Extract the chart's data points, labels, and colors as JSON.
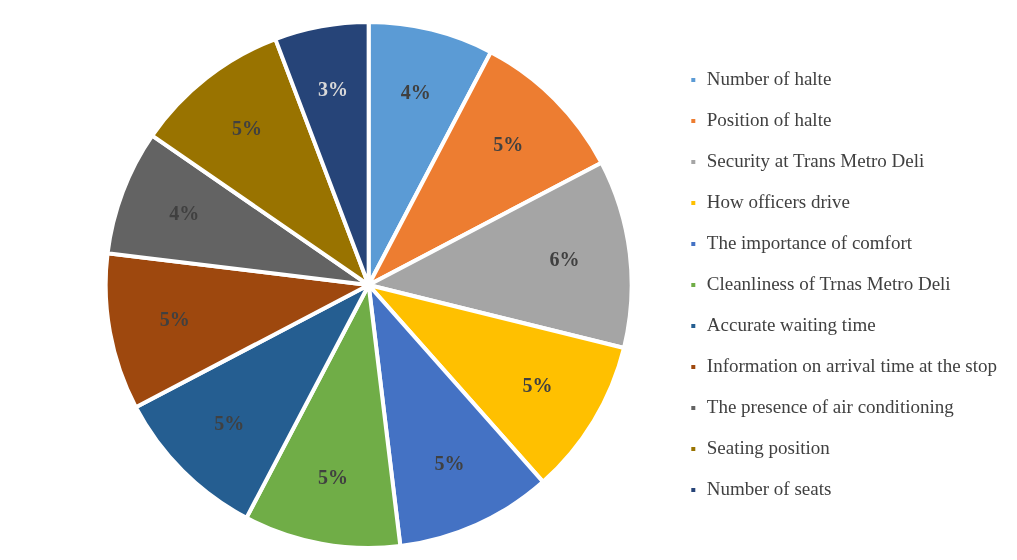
{
  "chart_data": {
    "type": "pie",
    "categories": [
      "Number of halte",
      "Position of halte",
      "Security at Trans Metro Deli",
      "How officers drive",
      "The importance of comfort",
      "Cleanliness of Trnas Metro Deli",
      "Accurate waiting time",
      "Information on arrival time at the stop",
      "The presence of air conditioning",
      "Seating position",
      "Number of seats"
    ],
    "values": [
      4,
      5,
      6,
      5,
      5,
      5,
      5,
      5,
      4,
      5,
      3
    ],
    "value_labels": [
      "4%",
      "5%",
      "6%",
      "5%",
      "5%",
      "5%",
      "5%",
      "5%",
      "4%",
      "5%",
      "3%"
    ],
    "colors": [
      "#5b9bd5",
      "#ed7d31",
      "#a5a5a5",
      "#ffc000",
      "#4472c4",
      "#70ad47",
      "#255e91",
      "#9e480e",
      "#636363",
      "#997300",
      "#264478"
    ],
    "legend": "right"
  }
}
